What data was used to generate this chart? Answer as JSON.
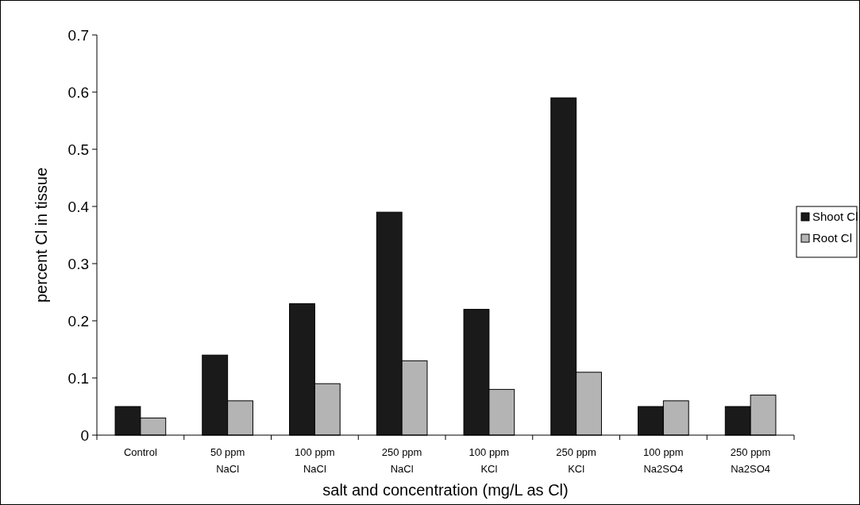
{
  "chart_data": {
    "type": "bar",
    "xlabel": "salt and concentration (mg/L as Cl)",
    "ylabel": "percent Cl in tissue",
    "categories": [
      "Control",
      "50 ppm NaCl",
      "100 ppm NaCl",
      "250 ppm NaCl",
      "100 ppm KCl",
      "250 ppm KCl",
      "100 ppm Na2SO4",
      "250 ppm Na2SO4"
    ],
    "series": [
      {
        "name": "Shoot Cl",
        "color": "#1a1a1a",
        "values": [
          0.05,
          0.14,
          0.23,
          0.39,
          0.22,
          0.59,
          0.05,
          0.05
        ]
      },
      {
        "name": "Root Cl",
        "color": "#b4b4b4",
        "values": [
          0.03,
          0.06,
          0.09,
          0.13,
          0.08,
          0.11,
          0.06,
          0.07
        ]
      }
    ],
    "ylim": [
      0,
      0.7
    ],
    "yticks": [
      0,
      0.1,
      0.2,
      0.3,
      0.4,
      0.5,
      0.6,
      0.7
    ],
    "grid": false,
    "legend": "right"
  }
}
